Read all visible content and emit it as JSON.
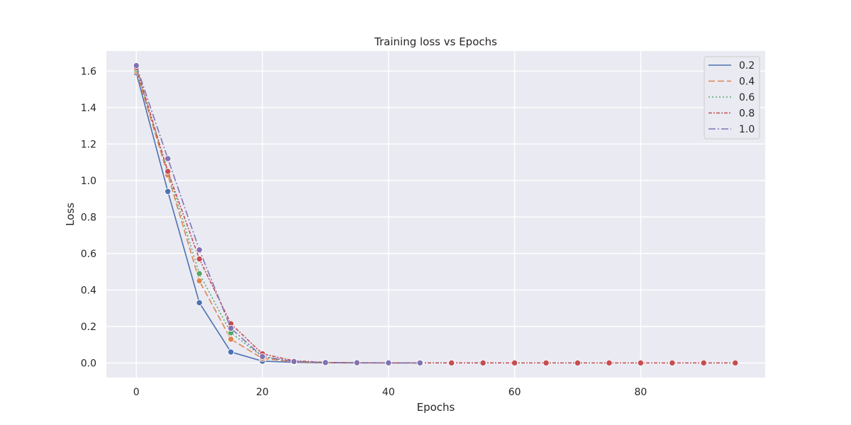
{
  "chart_data": {
    "type": "line",
    "title": "Training loss vs Epochs",
    "xlabel": "Epochs",
    "ylabel": "Loss",
    "xlim": [
      -4.75,
      99.75
    ],
    "ylim": [
      -0.08,
      1.71
    ],
    "xticks": [
      0,
      20,
      40,
      60,
      80
    ],
    "yticks": [
      0.0,
      0.2,
      0.4,
      0.6,
      0.8,
      1.0,
      1.2,
      1.4,
      1.6
    ],
    "grid": true,
    "legend_position": "top-right",
    "series": [
      {
        "name": "0.2",
        "color": "#4c72b0",
        "dash": "",
        "x": [
          0,
          5,
          10,
          15,
          20,
          25,
          30,
          35,
          40,
          45
        ],
        "y": [
          1.59,
          0.94,
          0.33,
          0.06,
          0.01,
          0.003,
          0.001,
          0.0005,
          0.0003,
          0.0002
        ]
      },
      {
        "name": "0.4",
        "color": "#dd8452",
        "dash": "9,4",
        "x": [
          0,
          5,
          10,
          15,
          20,
          25,
          30,
          35,
          40,
          45
        ],
        "y": [
          1.6,
          1.03,
          0.45,
          0.13,
          0.025,
          0.005,
          0.001,
          0.0005,
          0.0003,
          0.0002
        ]
      },
      {
        "name": "0.6",
        "color": "#55a868",
        "dash": "2,3",
        "x": [
          0,
          5,
          10,
          15,
          20,
          25,
          30,
          35,
          40,
          45
        ],
        "y": [
          1.61,
          1.05,
          0.49,
          0.165,
          0.035,
          0.007,
          0.002,
          0.0008,
          0.0004,
          0.0002
        ]
      },
      {
        "name": "0.8",
        "color": "#c44e52",
        "dash": "5,2,2,2",
        "x": [
          0,
          5,
          10,
          15,
          20,
          25,
          30,
          35,
          40,
          45,
          50,
          55,
          60,
          65,
          70,
          75,
          80,
          85,
          90,
          95
        ],
        "y": [
          1.62,
          1.05,
          0.57,
          0.215,
          0.05,
          0.012,
          0.003,
          0.001,
          0.0005,
          0.0003,
          0.0002,
          0.0002,
          0.0001,
          0.0001,
          0.0001,
          0.0001,
          0.0001,
          0.0001,
          0.0001,
          0.0001
        ]
      },
      {
        "name": "1.0",
        "color": "#8172b3",
        "dash": "10,3,2,3",
        "x": [
          0,
          5,
          10,
          15,
          20,
          25,
          30,
          35,
          40,
          45
        ],
        "y": [
          1.63,
          1.12,
          0.62,
          0.19,
          0.035,
          0.008,
          0.002,
          0.001,
          0.0005,
          0.0003
        ]
      }
    ]
  }
}
